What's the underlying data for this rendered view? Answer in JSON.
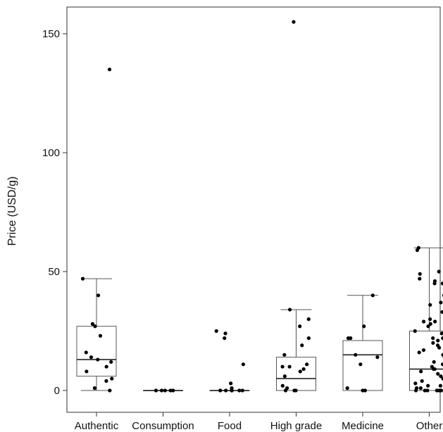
{
  "chart_data": {
    "type": "boxplot",
    "xlabel": "",
    "ylabel": "Price (USD/g)",
    "ylim": [
      -8,
      160
    ],
    "yticks": [
      0,
      50,
      100,
      150
    ],
    "grid": false,
    "legend": "none",
    "colors": {
      "box_fill": "#ffffff",
      "box_line": "#555555",
      "point": "#000000",
      "axis": "#333333"
    },
    "categories": [
      "Authentic",
      "Consumption",
      "Food",
      "High grade",
      "Medicine",
      "Other"
    ],
    "boxes": [
      {
        "category": "Authentic",
        "whisker_low": 0,
        "q1": 6,
        "median": 13,
        "q3": 27,
        "whisker_high": 47
      },
      {
        "category": "Consumption",
        "whisker_low": 0,
        "q1": 0,
        "median": 0,
        "q3": 0,
        "whisker_high": 0
      },
      {
        "category": "Food",
        "whisker_low": 0,
        "q1": 0,
        "median": 0,
        "q3": 0,
        "whisker_high": 0
      },
      {
        "category": "High grade",
        "whisker_low": 0,
        "q1": 0,
        "median": 5,
        "q3": 14,
        "whisker_high": 34
      },
      {
        "category": "Medicine",
        "whisker_low": 0,
        "q1": 0,
        "median": 15,
        "q3": 21,
        "whisker_high": 40
      },
      {
        "category": "Other",
        "whisker_low": 0,
        "q1": 0,
        "median": 9,
        "q3": 25,
        "whisker_high": 60
      }
    ],
    "points": [
      {
        "category": "Authentic",
        "values": [
          135,
          47,
          40,
          28,
          27,
          23,
          16,
          14,
          13,
          12,
          10,
          8,
          5,
          4,
          1,
          0
        ]
      },
      {
        "category": "Consumption",
        "values": [
          0,
          0,
          0,
          0,
          0
        ]
      },
      {
        "category": "Food",
        "values": [
          25,
          24,
          22,
          11,
          3,
          1,
          0,
          0,
          0,
          0,
          0,
          0,
          0
        ]
      },
      {
        "category": "High grade",
        "values": [
          155,
          34,
          30,
          27,
          22,
          19,
          15,
          11,
          10,
          10,
          9,
          8,
          6,
          2,
          1,
          0,
          0,
          0
        ]
      },
      {
        "category": "Medicine",
        "values": [
          40,
          27,
          22,
          22,
          15,
          14,
          11,
          1,
          0,
          0
        ]
      },
      {
        "category": "Other",
        "values": [
          60,
          59,
          50,
          49,
          47,
          46,
          45,
          45,
          40,
          37,
          36,
          33,
          30,
          29,
          29,
          28,
          27,
          25,
          24,
          22,
          22,
          21,
          20,
          19,
          18,
          17,
          16,
          15,
          14,
          12,
          11,
          10,
          9,
          9,
          8,
          7,
          6,
          5,
          4,
          3,
          2,
          2,
          1,
          1,
          0,
          0,
          0,
          0,
          0,
          0,
          0,
          0
        ]
      }
    ]
  }
}
